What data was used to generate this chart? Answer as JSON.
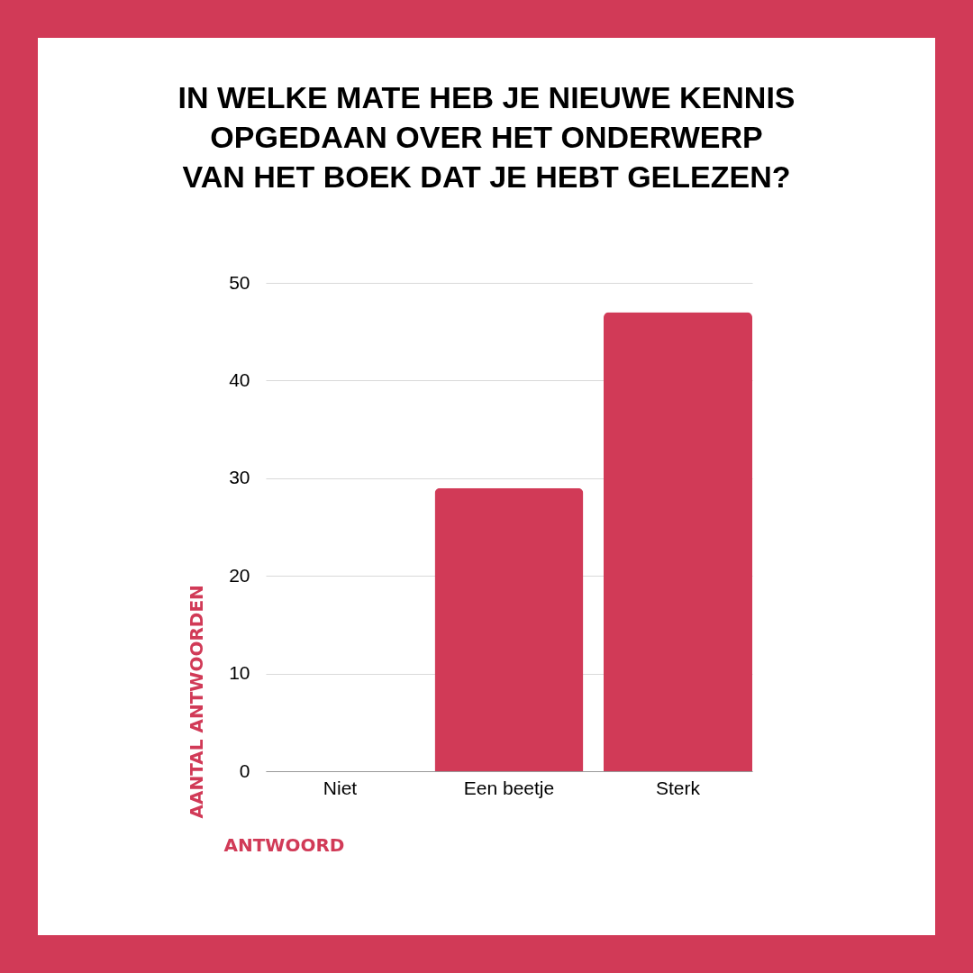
{
  "chart_data": {
    "type": "bar",
    "title": "IN WELKE MATE HEB JE NIEUWE KENNIS\nOPGEDAAN OVER HET ONDERWERP\nVAN HET BOEK DAT JE HEBT GELEZEN?",
    "xlabel": "ANTWOORD",
    "ylabel": "AANTAL ANTWOORDEN",
    "categories": [
      "Niet",
      "Een beetje",
      "Sterk"
    ],
    "values": [
      0,
      29,
      47
    ],
    "color": "#d13a57",
    "ylim": [
      0,
      50
    ],
    "yticks": [
      0,
      10,
      20,
      30,
      40,
      50
    ],
    "grid": "y"
  }
}
